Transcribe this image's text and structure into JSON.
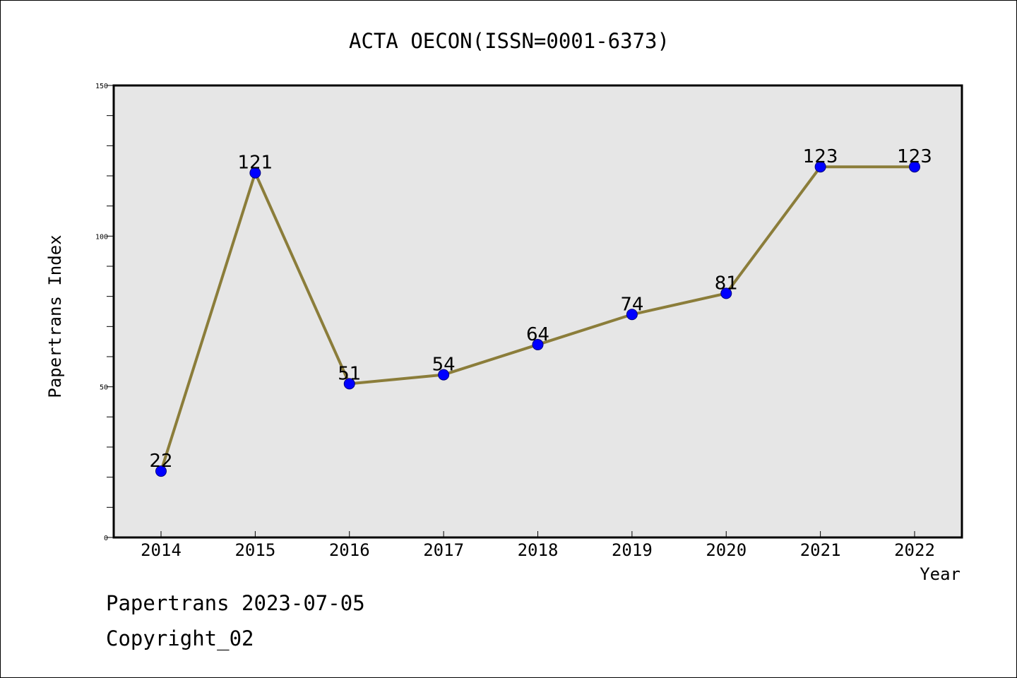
{
  "chart_data": {
    "type": "line",
    "title": "ACTA OECON(ISSN=0001-6373)",
    "xlabel": "Year",
    "ylabel": "Papertrans Index",
    "categories": [
      "2014",
      "2015",
      "2016",
      "2017",
      "2018",
      "2019",
      "2020",
      "2021",
      "2022"
    ],
    "series": [
      {
        "values": [
          22,
          121,
          51,
          54,
          64,
          74,
          81,
          123,
          123
        ],
        "data_labels": [
          "22",
          "121",
          "51",
          "54",
          "64",
          "74",
          "81",
          "123",
          "123"
        ],
        "line_color": "#8B7D3A",
        "marker_color": "#0000FF"
      }
    ],
    "ylim": [
      0,
      150
    ],
    "y_ticks": [
      "0",
      "50",
      "100",
      "150"
    ],
    "grid": false,
    "plot_background": "#E6E6E6"
  },
  "footer": {
    "date_line": "Papertrans 2023-07-05",
    "copyright_line": "Copyright_02"
  }
}
